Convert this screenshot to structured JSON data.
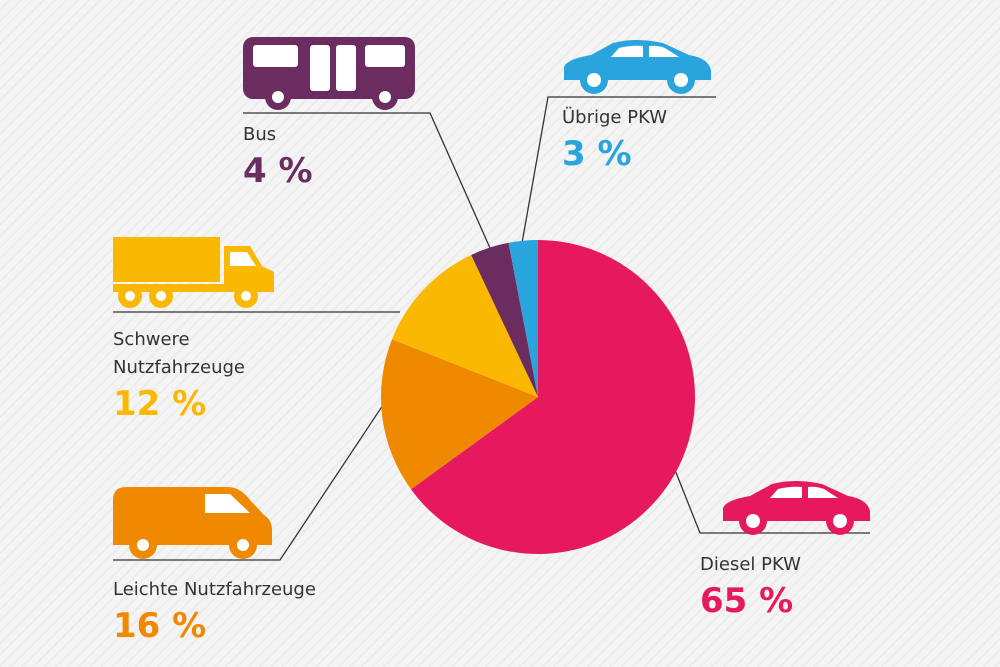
{
  "chart_data": {
    "type": "pie",
    "categories": [
      "Diesel PKW",
      "Leichte Nutzfahrzeuge",
      "Schwere Nutzfahrzeuge",
      "Bus",
      "Übrige PKW"
    ],
    "values": [
      65,
      16,
      12,
      4,
      3
    ],
    "value_labels": [
      "65 %",
      "16 %",
      "12 %",
      "4 %",
      "3 %"
    ],
    "colors": [
      "#e6195f",
      "#ef8a00",
      "#fbb800",
      "#6b2d5f",
      "#2aa4dc"
    ]
  }
}
